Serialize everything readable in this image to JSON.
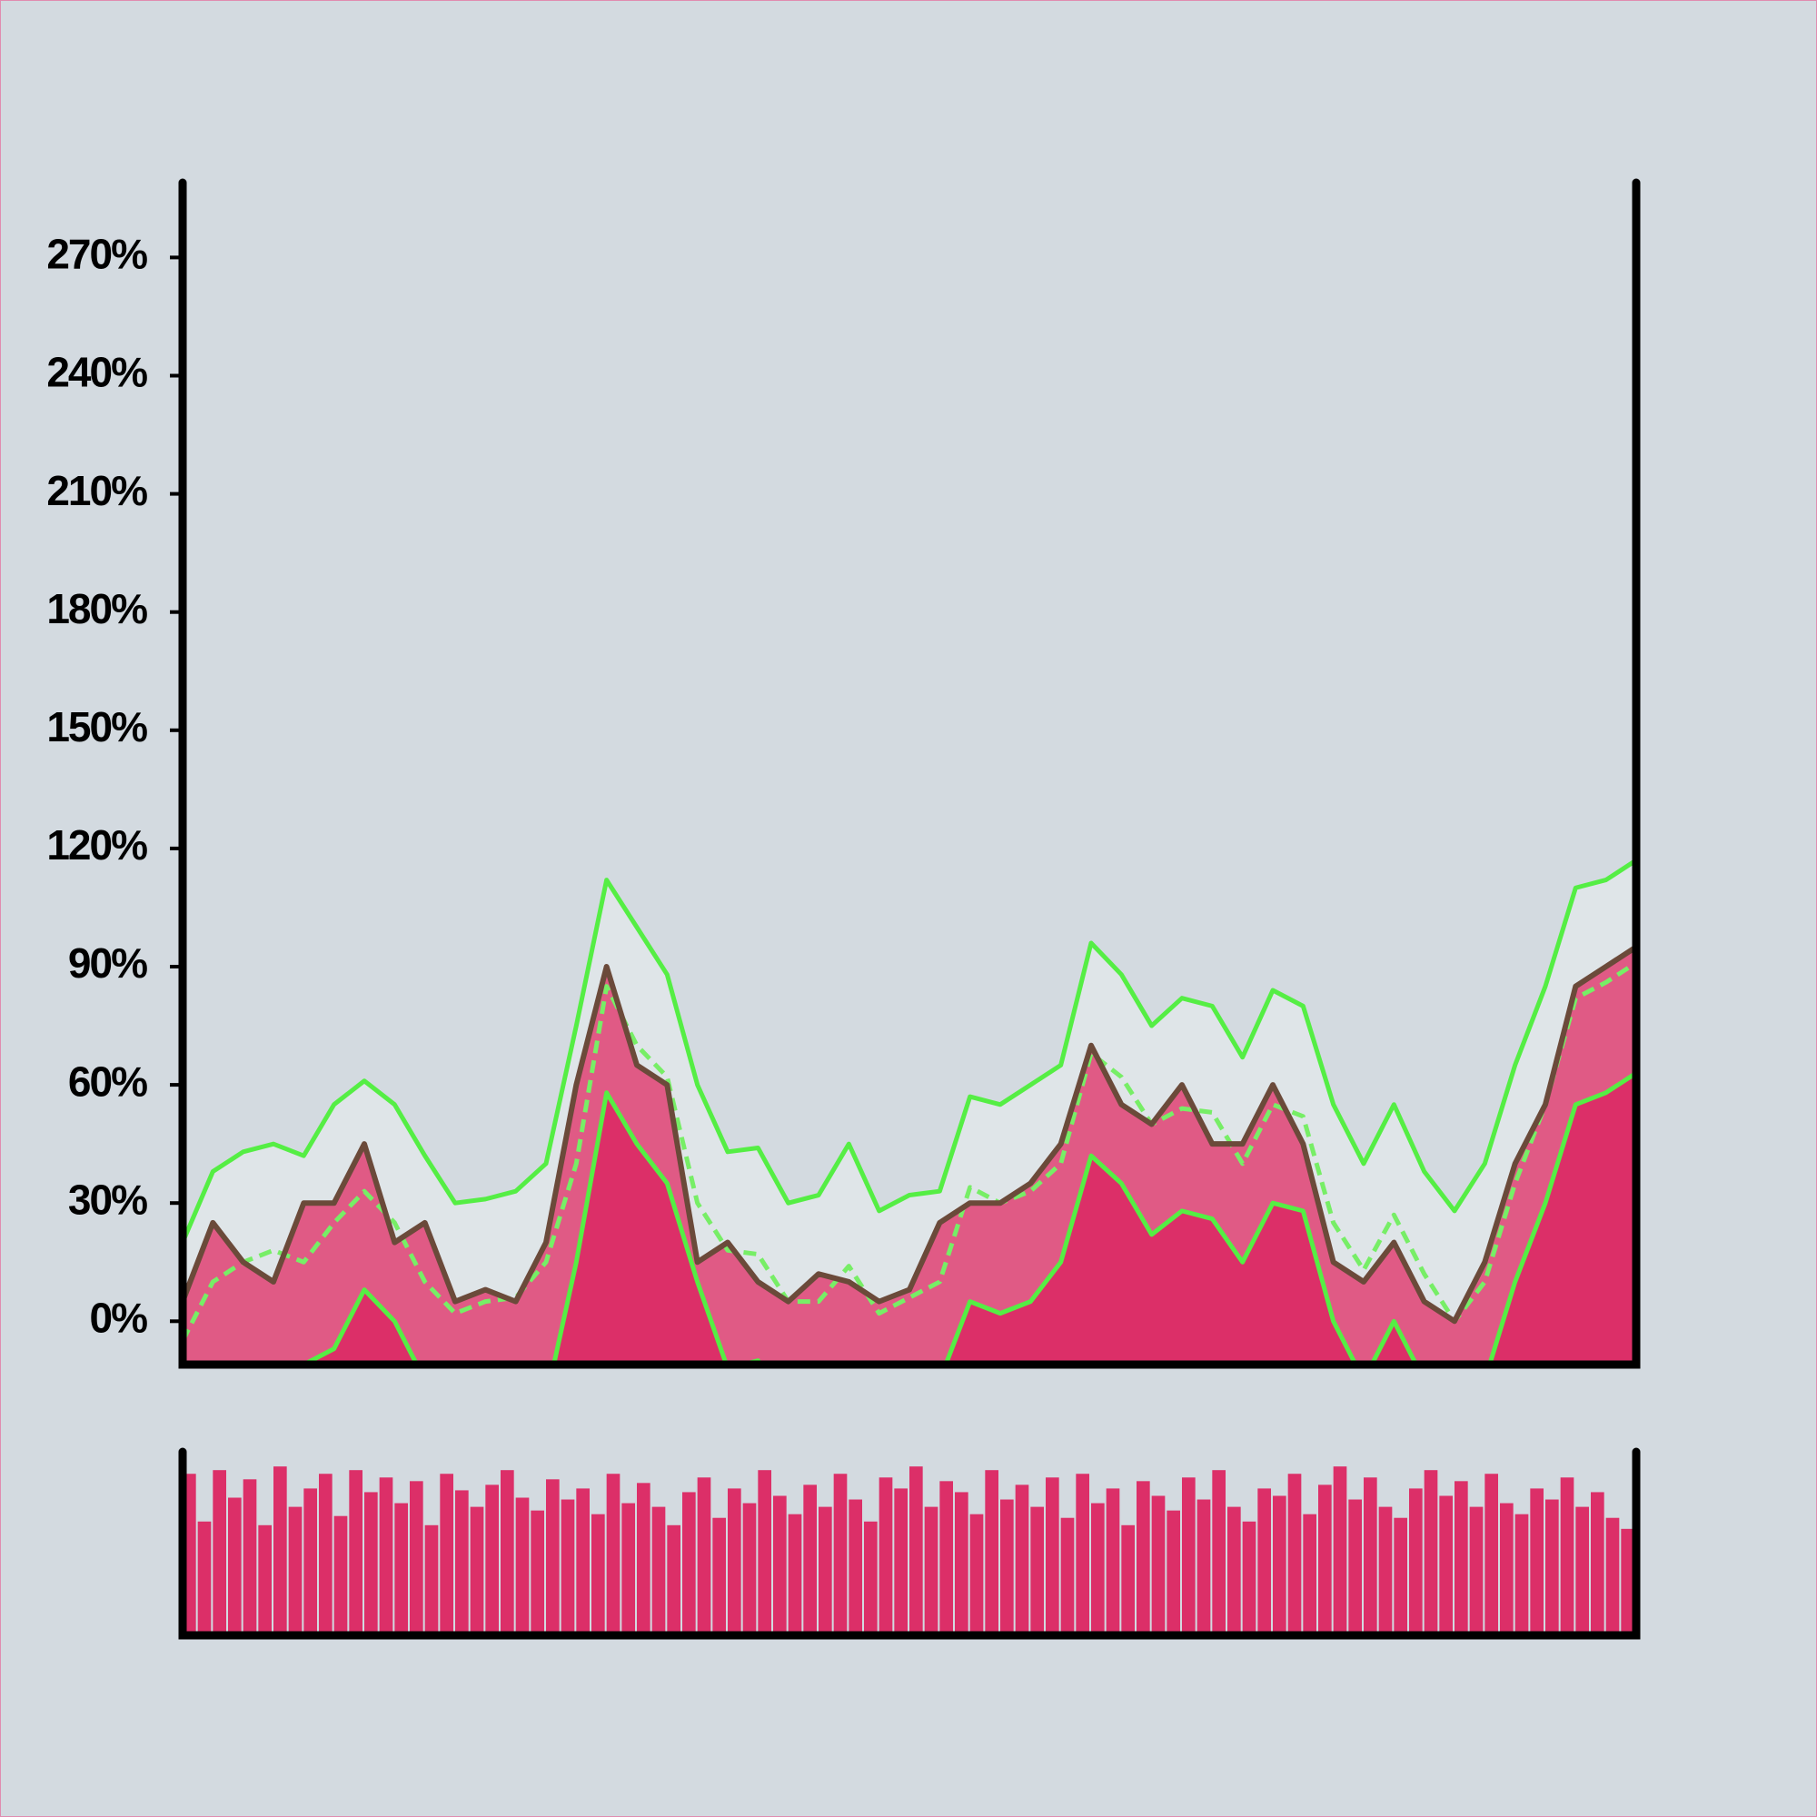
{
  "chart_data": [
    {
      "type": "band-line",
      "x": [
        0,
        0.5,
        1,
        1.5,
        2,
        2.5,
        3,
        3.5,
        4,
        4.5,
        5,
        5.5,
        6,
        6.5,
        7,
        7.5,
        8,
        8.5,
        9,
        9.5,
        10,
        10.5,
        11,
        11.5,
        12,
        12.5,
        13,
        13.5,
        14,
        14.5,
        15,
        15.5,
        16,
        16.5,
        17,
        17.5,
        18,
        18.5,
        19,
        19.5,
        20,
        20.5,
        21,
        21.5,
        22,
        22.5,
        23,
        23.5,
        24
      ],
      "series": [
        {
          "role": "upper",
          "color": "#55ee44",
          "values": [
            20,
            38,
            43,
            45,
            42,
            55,
            61,
            55,
            42,
            30,
            31,
            33,
            40,
            75,
            112,
            100,
            88,
            60,
            43,
            44,
            30,
            32,
            45,
            28,
            32,
            33,
            57,
            55,
            60,
            65,
            96,
            88,
            75,
            82,
            80,
            67,
            84,
            80,
            55,
            40,
            55,
            38,
            28,
            40,
            65,
            85,
            110,
            112,
            117
          ]
        },
        {
          "role": "middle",
          "color": "#77ee66",
          "values": [
            -5,
            10,
            15,
            18,
            15,
            25,
            33,
            25,
            10,
            2,
            5,
            6,
            15,
            40,
            85,
            70,
            62,
            30,
            18,
            17,
            5,
            5,
            14,
            2,
            6,
            10,
            34,
            30,
            33,
            40,
            68,
            62,
            50,
            54,
            53,
            40,
            55,
            52,
            25,
            13,
            27,
            12,
            0,
            10,
            35,
            55,
            82,
            86,
            91
          ]
        },
        {
          "role": "lower",
          "color": "#55ee44",
          "values": [
            -25,
            -20,
            -15,
            -12,
            -11,
            -7,
            8,
            0,
            -15,
            -25,
            -30,
            -30,
            -20,
            15,
            58,
            45,
            35,
            10,
            -12,
            -10,
            -20,
            -20,
            -12,
            -20,
            -20,
            -15,
            5,
            2,
            5,
            15,
            42,
            35,
            22,
            28,
            26,
            15,
            30,
            28,
            0,
            -15,
            0,
            -15,
            -25,
            -15,
            10,
            30,
            55,
            58,
            63
          ]
        },
        {
          "role": "actual",
          "color": "#6b4a3a",
          "values": [
            5,
            25,
            15,
            10,
            30,
            30,
            45,
            20,
            25,
            5,
            8,
            5,
            20,
            60,
            90,
            65,
            60,
            15,
            20,
            10,
            5,
            12,
            10,
            5,
            8,
            25,
            30,
            30,
            35,
            45,
            70,
            55,
            50,
            60,
            45,
            45,
            60,
            45,
            15,
            10,
            20,
            5,
            0,
            15,
            40,
            55,
            85,
            90,
            95
          ]
        }
      ],
      "band_color": "#dfe5e8",
      "actual_fill": "#e05a85",
      "lower_fill": "#dc2f68",
      "xlim": [
        0,
        24
      ],
      "ylim": [
        -11,
        289
      ],
      "yticks": [
        {
          "value": 0,
          "label": "0%"
        },
        {
          "value": 30,
          "label": "30%"
        },
        {
          "value": 60,
          "label": "60%"
        },
        {
          "value": 90,
          "label": "90%"
        },
        {
          "value": 120,
          "label": "120%"
        },
        {
          "value": 150,
          "label": "150%"
        },
        {
          "value": 180,
          "label": "180%"
        },
        {
          "value": 210,
          "label": "210%"
        },
        {
          "value": 240,
          "label": "240%"
        },
        {
          "value": 270,
          "label": "270%"
        }
      ]
    },
    {
      "type": "bar",
      "color": "#dc2f68",
      "xlim": [
        0,
        24
      ],
      "ylim": [
        0,
        100
      ],
      "values": [
        88,
        62,
        90,
        75,
        85,
        60,
        92,
        70,
        80,
        88,
        65,
        90,
        78,
        86,
        72,
        84,
        60,
        88,
        79,
        70,
        82,
        90,
        75,
        68,
        85,
        74,
        80,
        66,
        88,
        72,
        83,
        70,
        60,
        78,
        86,
        64,
        80,
        72,
        90,
        76,
        66,
        82,
        70,
        88,
        74,
        62,
        86,
        80,
        92,
        70,
        84,
        78,
        66,
        90,
        74,
        82,
        70,
        86,
        64,
        88,
        72,
        80,
        60,
        84,
        76,
        68,
        86,
        74,
        90,
        70,
        62,
        80,
        76,
        88,
        66,
        82,
        92,
        74,
        86,
        70,
        64,
        80,
        90,
        76,
        84,
        70,
        88,
        72,
        66,
        80,
        74,
        86,
        70,
        78,
        64,
        58
      ]
    }
  ]
}
